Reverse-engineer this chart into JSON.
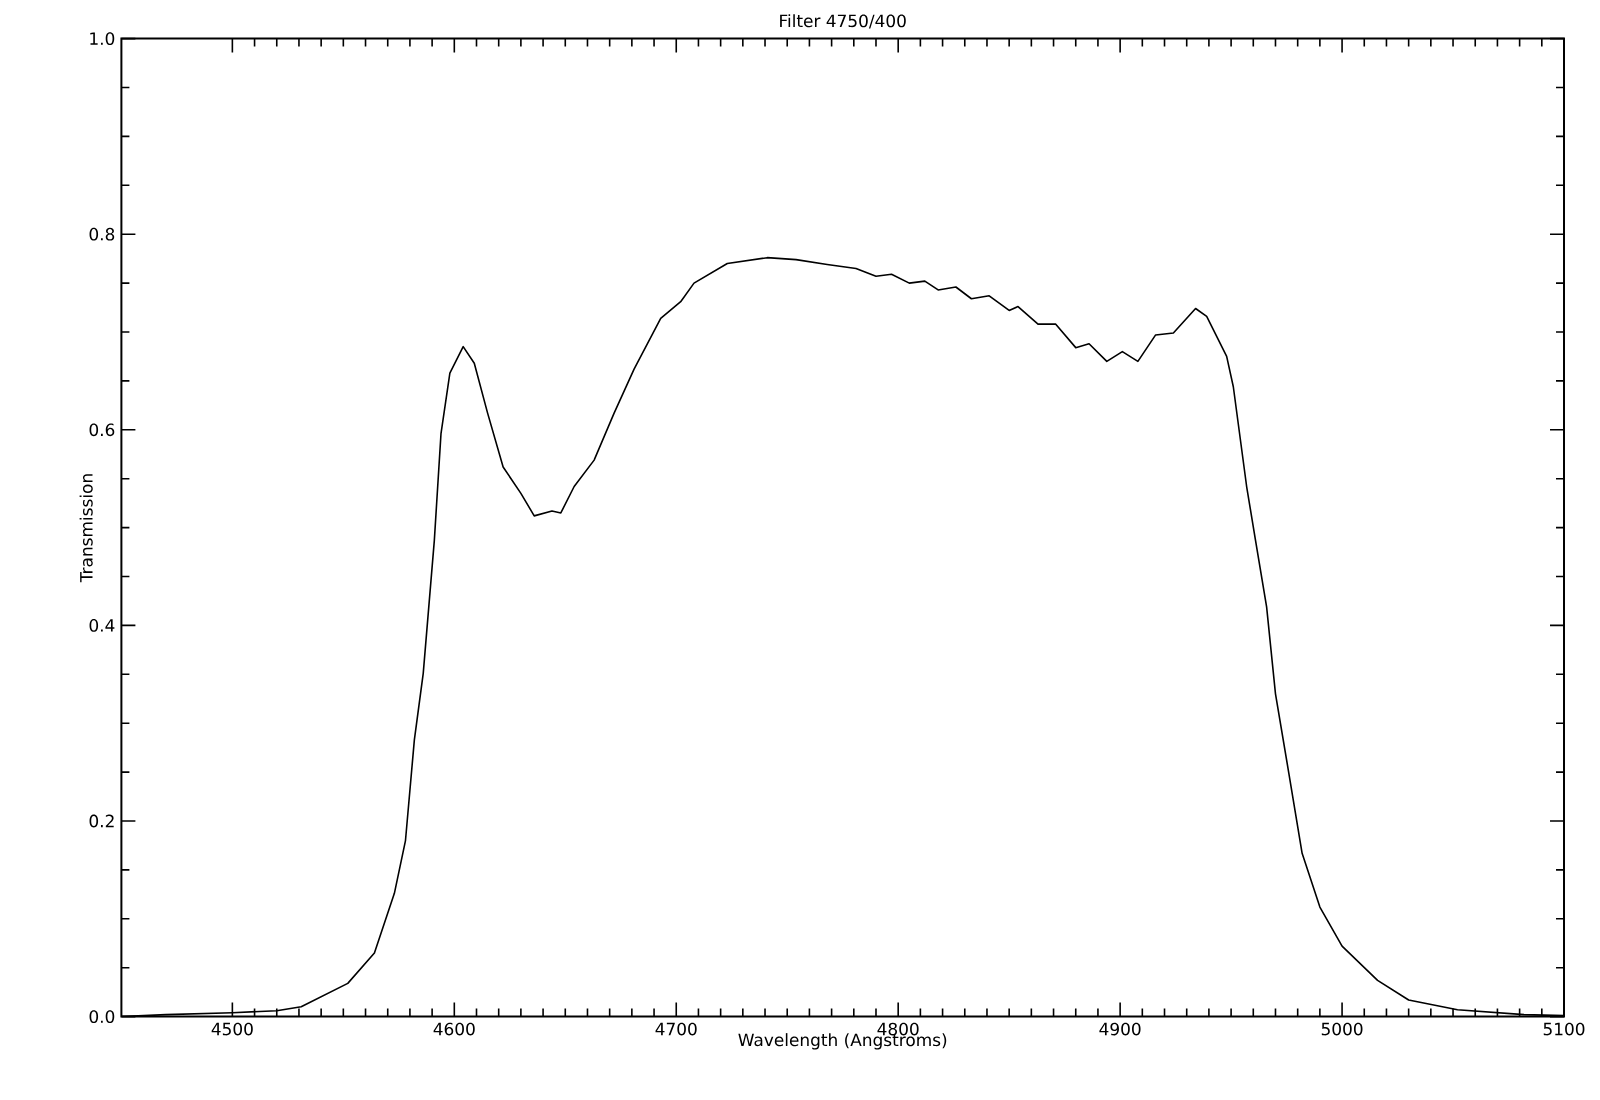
{
  "chart_data": {
    "type": "line",
    "title": "Filter 4750/400",
    "xlabel": "Wavelength (Angstroms)",
    "ylabel": "Transmission",
    "xlim": [
      4450,
      5100
    ],
    "xticks": [
      4500,
      4600,
      4700,
      4800,
      4900,
      5000,
      5100
    ],
    "ylim": [
      0,
      1
    ],
    "yticks": [
      {
        "value": 0,
        "label": "0.0"
      },
      0.2,
      0.4,
      0.6,
      0.8,
      {
        "value": 1,
        "label": "1.0"
      }
    ],
    "marker": "none",
    "line_style": "solid",
    "series": [
      {
        "color": "#000000",
        "x": [
          4450,
          4470,
          4500,
          4520,
          4531,
          4552,
          4564,
          4573,
          4578,
          4582,
          4586,
          4591,
          4594,
          4598,
          4604,
          4609,
          4615,
          4622,
          4630,
          4636,
          4644,
          4648,
          4654,
          4663,
          4672,
          4681,
          4693,
          4702,
          4708,
          4723,
          4741,
          4754,
          4768,
          4781,
          4790,
          4797,
          4805,
          4812,
          4818,
          4826,
          4833,
          4841,
          4850,
          4854,
          4863,
          4871,
          4880,
          4886,
          4894,
          4901,
          4908,
          4916,
          4924,
          4934,
          4939,
          4948,
          4951,
          4957,
          4961,
          4966,
          4970,
          4976,
          4982,
          4990,
          5000,
          5016,
          5030,
          5052,
          5082,
          5100
        ],
        "values": [
          0.0,
          0.002,
          0.004,
          0.006,
          0.01,
          0.034,
          0.065,
          0.126,
          0.18,
          0.283,
          0.351,
          0.487,
          0.596,
          0.658,
          0.685,
          0.668,
          0.617,
          0.562,
          0.535,
          0.512,
          0.517,
          0.515,
          0.542,
          0.569,
          0.617,
          0.662,
          0.714,
          0.731,
          0.75,
          0.77,
          0.776,
          0.774,
          0.769,
          0.765,
          0.757,
          0.759,
          0.75,
          0.752,
          0.743,
          0.746,
          0.734,
          0.737,
          0.722,
          0.726,
          0.708,
          0.708,
          0.684,
          0.688,
          0.67,
          0.68,
          0.67,
          0.697,
          0.699,
          0.724,
          0.716,
          0.675,
          0.644,
          0.542,
          0.487,
          0.419,
          0.33,
          0.249,
          0.167,
          0.112,
          0.072,
          0.037,
          0.017,
          0.007,
          0.002,
          0.001
        ]
      }
    ]
  }
}
